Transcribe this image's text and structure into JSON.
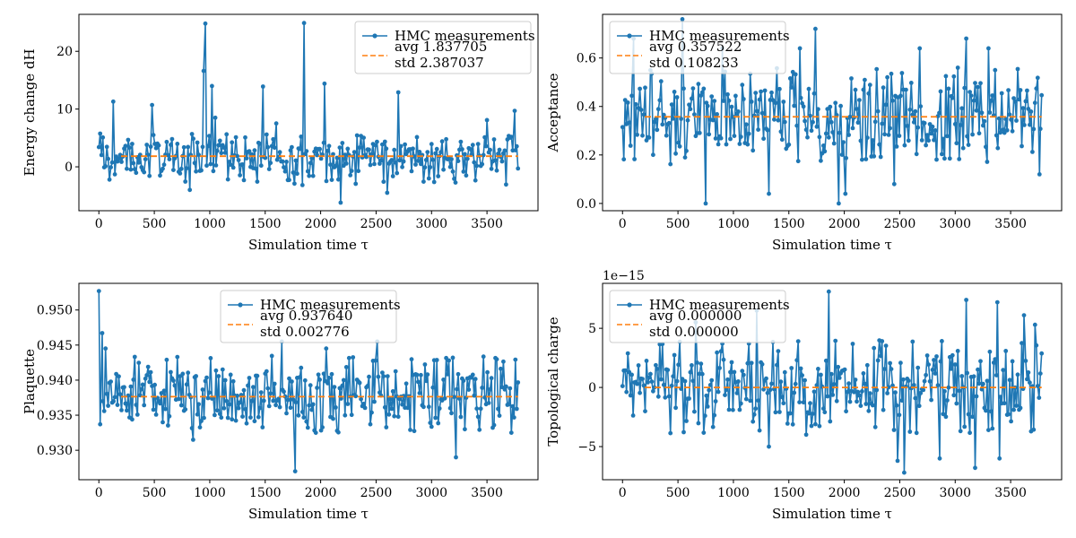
{
  "figure_title": "",
  "colors": {
    "series": "#1f77b4",
    "average": "#ff7f0e",
    "axes": "#000000"
  },
  "chart_data": [
    {
      "id": "energy",
      "type": "line",
      "xlabel": "Simulation time τ",
      "ylabel": "Energy change dH",
      "offset_text": "",
      "xlim": [
        -180,
        3960
      ],
      "ylim": [
        -7.6,
        26.4
      ],
      "xticks": [
        0,
        500,
        1000,
        1500,
        2000,
        2500,
        3000,
        3500
      ],
      "xtick_labels": [
        "0",
        "500",
        "1000",
        "1500",
        "2000",
        "2500",
        "3000",
        "3500"
      ],
      "yticks": [
        0,
        10,
        20
      ],
      "ytick_labels": [
        "0",
        "10",
        "20"
      ],
      "legend": {
        "placement": "upper right",
        "series_label": "HMC measurements",
        "avg_label": "avg 1.837705",
        "std_label": "std 2.387037"
      },
      "average": {
        "value": 1.837705,
        "x_start": 200,
        "x_end": 3780
      },
      "series": [
        {
          "name": "HMC measurements",
          "x_start": 0,
          "x_end": 3780,
          "low": -3.2,
          "high": 5.8,
          "spikes": [
            [
              0,
              3.4
            ],
            [
              130,
              11.3
            ],
            [
              960,
              24.8
            ],
            [
              945,
              16.6
            ],
            [
              1020,
              14.0
            ],
            [
              1045,
              11.0
            ],
            [
              1480,
              13.9
            ],
            [
              1600,
              7.5
            ],
            [
              1850,
              24.9
            ],
            [
              2035,
              14.4
            ],
            [
              2180,
              -6.2
            ],
            [
              2700,
              12.9
            ],
            [
              2600,
              -4.5
            ],
            [
              1050,
              8.5
            ],
            [
              3500,
              8.1
            ],
            [
              3750,
              9.7
            ],
            [
              480,
              10.7
            ],
            [
              820,
              -4.0
            ]
          ]
        }
      ]
    },
    {
      "id": "acceptance",
      "type": "line",
      "xlabel": "Simulation time τ",
      "ylabel": "Acceptance",
      "offset_text": "",
      "xlim": [
        -180,
        3960
      ],
      "ylim": [
        -0.03,
        0.78
      ],
      "xticks": [
        0,
        500,
        1000,
        1500,
        2000,
        2500,
        3000,
        3500
      ],
      "xtick_labels": [
        "0",
        "500",
        "1000",
        "1500",
        "2000",
        "2500",
        "3000",
        "3500"
      ],
      "yticks": [
        0,
        0.2,
        0.4,
        0.6
      ],
      "ytick_labels": [
        "0.0",
        "0.2",
        "0.4",
        "0.6"
      ],
      "legend": {
        "placement": "upper left",
        "series_label": "HMC measurements",
        "avg_label": "avg 0.357522",
        "std_label": "std 0.108233"
      },
      "average": {
        "value": 0.357522,
        "x_start": 200,
        "x_end": 3780
      },
      "series": [
        {
          "name": "HMC measurements",
          "x_start": 0,
          "x_end": 3780,
          "low": 0.16,
          "high": 0.56,
          "spikes": [
            [
              540,
              0.76
            ],
            [
              1740,
              0.72
            ],
            [
              3100,
              0.68
            ],
            [
              750,
              0.0
            ],
            [
              2010,
              0.04
            ],
            [
              1950,
              0.0
            ],
            [
              1320,
              0.04
            ],
            [
              1600,
              0.64
            ],
            [
              2680,
              0.64
            ],
            [
              100,
              0.68
            ],
            [
              900,
              0.64
            ],
            [
              2450,
              0.08
            ],
            [
              3760,
              0.12
            ],
            [
              3300,
              0.64
            ]
          ]
        }
      ]
    },
    {
      "id": "plaquette",
      "type": "line",
      "xlabel": "Simulation time τ",
      "ylabel": "Plaquette",
      "offset_text": "",
      "xlim": [
        -180,
        3960
      ],
      "ylim": [
        0.9258,
        0.9538
      ],
      "xticks": [
        0,
        500,
        1000,
        1500,
        2000,
        2500,
        3000,
        3500
      ],
      "xtick_labels": [
        "0",
        "500",
        "1000",
        "1500",
        "2000",
        "2500",
        "3000",
        "3500"
      ],
      "yticks": [
        0.93,
        0.935,
        0.94,
        0.945,
        0.95
      ],
      "ytick_labels": [
        "0.930",
        "0.935",
        "0.940",
        "0.945",
        "0.950"
      ],
      "legend": {
        "placement": "upper center",
        "series_label": "HMC measurements",
        "avg_label": "avg 0.937640",
        "std_label": "std 0.002776"
      },
      "average": {
        "value": 0.93764,
        "x_start": 200,
        "x_end": 3780
      },
      "series": [
        {
          "name": "HMC measurements",
          "x_start": 0,
          "x_end": 3780,
          "low": 0.9325,
          "high": 0.9435,
          "spikes": [
            [
              0,
              0.9527
            ],
            [
              30,
              0.9467
            ],
            [
              1770,
              0.927
            ],
            [
              3220,
              0.929
            ],
            [
              850,
              0.9315
            ],
            [
              1650,
              0.9455
            ],
            [
              2510,
              0.9455
            ],
            [
              2050,
              0.9445
            ],
            [
              3720,
              0.9325
            ],
            [
              60,
              0.9445
            ]
          ]
        }
      ]
    },
    {
      "id": "topological",
      "type": "line",
      "xlabel": "Simulation time τ",
      "ylabel": "Topological charge",
      "offset_text": "1e−15",
      "xlim": [
        -180,
        3960
      ],
      "ylim": [
        -7.8,
        8.8
      ],
      "xticks": [
        0,
        500,
        1000,
        1500,
        2000,
        2500,
        3000,
        3500
      ],
      "xtick_labels": [
        "0",
        "500",
        "1000",
        "1500",
        "2000",
        "2500",
        "3000",
        "3500"
      ],
      "yticks": [
        -5,
        0,
        5
      ],
      "ytick_labels": [
        "−5",
        "0",
        "5"
      ],
      "legend": {
        "placement": "upper left",
        "series_label": "HMC measurements",
        "avg_label": "avg 0.000000",
        "std_label": "std 0.000000"
      },
      "average": {
        "value": 0.0,
        "x_start": 200,
        "x_end": 3780
      },
      "series": [
        {
          "name": "HMC measurements",
          "x_start": 0,
          "x_end": 3780,
          "low": -4.0,
          "high": 4.0,
          "spikes": [
            [
              1860,
              8.1
            ],
            [
              3100,
              7.4
            ],
            [
              2540,
              -7.2
            ],
            [
              3180,
              -6.8
            ],
            [
              3380,
              7.2
            ],
            [
              1210,
              6.5
            ],
            [
              2860,
              -6.0
            ],
            [
              3620,
              6.1
            ],
            [
              1320,
              -5.0
            ],
            [
              660,
              5.5
            ],
            [
              3400,
              -6.0
            ],
            [
              2480,
              -6.2
            ],
            [
              3720,
              5.3
            ]
          ]
        }
      ]
    }
  ]
}
